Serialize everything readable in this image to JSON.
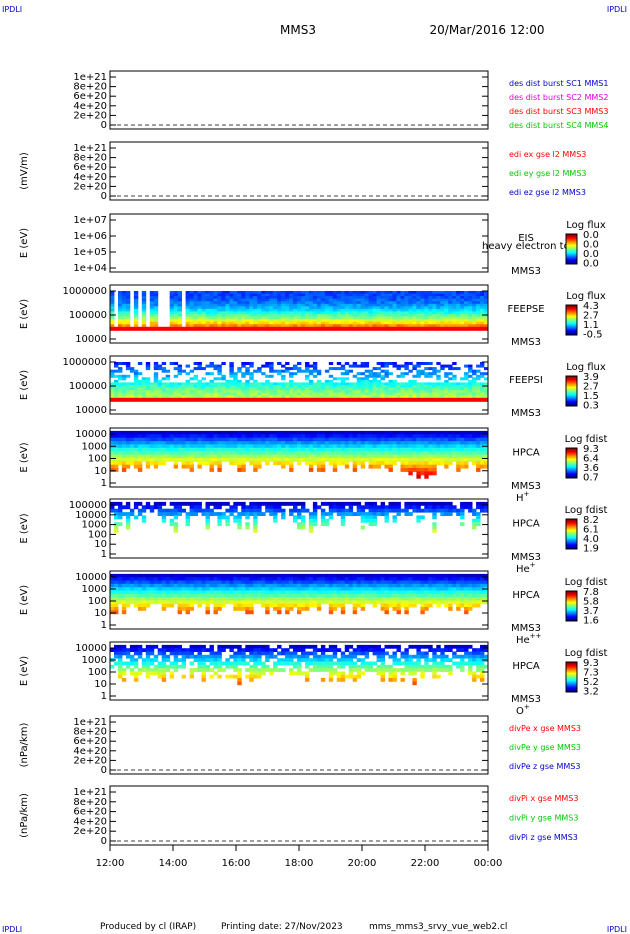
{
  "header": {
    "corner_tl": "IPDLI",
    "corner_tr": "IPDLI",
    "corner_bl": "IPDLI",
    "corner_br": "IPDLI",
    "spacecraft": "MMS3",
    "date": "20/Mar/2016 12:00"
  },
  "footer": {
    "producer": "Produced by cl (IRAP)",
    "printing_date": "Printing date: 27/Nov/2023",
    "script": "mms_mms3_srvy_vue_web2.cl"
  },
  "colors": {
    "red": "#ff0000",
    "green": "#00c800",
    "blue": "#0000cc",
    "magenta": "#e000e0"
  },
  "chart_data": [
    {
      "type": "line",
      "id": "des",
      "ylabel": "",
      "yticks": [
        "0",
        "2e+20",
        "4e+20",
        "6e+20",
        "8e+20",
        "1e+21"
      ],
      "legend": [
        {
          "name": "des dist burst SC1 MMS1",
          "color": "#0000cc"
        },
        {
          "name": "des dist burst SC2 MMS2",
          "color": "#e000e0"
        },
        {
          "name": "des dist burst SC3 MMS3",
          "color": "#ff0000"
        },
        {
          "name": "des dist burst SC4 MMS4",
          "color": "#00c800"
        }
      ]
    },
    {
      "type": "line",
      "id": "edi",
      "ylabel": "(mV/m)",
      "yticks": [
        "0",
        "2e+20",
        "4e+20",
        "6e+20",
        "8e+20",
        "1e+21"
      ],
      "legend": [
        {
          "name": "edi ex gse l2 MMS3",
          "color": "#ff0000"
        },
        {
          "name": "edi ey gse l2 MMS3",
          "color": "#00c800"
        },
        {
          "name": "edi ez gse l2 MMS3",
          "color": "#0000cc"
        }
      ]
    },
    {
      "type": "heatmap",
      "id": "eis",
      "ylabel": "E (eV)",
      "yticks": [
        "1e+04",
        "1e+05",
        "1e+06",
        "1e+07"
      ],
      "side_labels": [
        "EIS",
        "MMS3"
      ],
      "overlay": "heavy electron to",
      "cbar_title": "Log flux",
      "cbar_ticks": [
        "0.0",
        "0.0",
        "0.0",
        "0.0"
      ]
    },
    {
      "type": "heatmap",
      "id": "feepse",
      "ylabel": "E (eV)",
      "yticks": [
        "10000",
        "100000",
        "1000000"
      ],
      "side_labels": [
        "FEEPSE",
        "MMS3"
      ],
      "cbar_title": "Log flux",
      "cbar_ticks": [
        "4.3",
        "2.7",
        "1.1",
        "-0.5"
      ]
    },
    {
      "type": "heatmap",
      "id": "feepsi",
      "ylabel": "E (eV)",
      "yticks": [
        "10000",
        "100000",
        "1000000"
      ],
      "side_labels": [
        "FEEPSI",
        "MMS3"
      ],
      "cbar_title": "Log flux",
      "cbar_ticks": [
        "3.9",
        "2.7",
        "1.5",
        "0.3"
      ]
    },
    {
      "type": "heatmap",
      "id": "hpca_h",
      "ylabel": "E (eV)",
      "yticks": [
        "1",
        "10",
        "100",
        "1000",
        "10000"
      ],
      "side_labels": [
        "HPCA",
        "MMS3"
      ],
      "species": "H",
      "charge": "+",
      "cbar_title": "Log fdist",
      "cbar_ticks": [
        "9.3",
        "6.4",
        "3.6",
        "0.7"
      ]
    },
    {
      "type": "heatmap",
      "id": "hpca_he",
      "ylabel": "E (eV)",
      "yticks": [
        "1",
        "10",
        "100",
        "1000",
        "10000",
        "100000"
      ],
      "side_labels": [
        "HPCA",
        "MMS3"
      ],
      "species": "He",
      "charge": "+",
      "cbar_title": "Log fdist",
      "cbar_ticks": [
        "8.2",
        "6.1",
        "4.0",
        "1.9"
      ]
    },
    {
      "type": "heatmap",
      "id": "hpca_he2",
      "ylabel": "E (eV)",
      "yticks": [
        "1",
        "10",
        "100",
        "1000",
        "10000"
      ],
      "side_labels": [
        "HPCA",
        "MMS3"
      ],
      "species": "He",
      "charge": "++",
      "cbar_title": "Log fdist",
      "cbar_ticks": [
        "7.8",
        "5.8",
        "3.7",
        "1.6"
      ]
    },
    {
      "type": "heatmap",
      "id": "hpca_o",
      "ylabel": "E (eV)",
      "yticks": [
        "1",
        "10",
        "100",
        "1000",
        "10000"
      ],
      "side_labels": [
        "HPCA",
        "MMS3"
      ],
      "species": "O",
      "charge": "+",
      "cbar_title": "Log fdist",
      "cbar_ticks": [
        "9.3",
        "7.3",
        "5.2",
        "3.2"
      ]
    },
    {
      "type": "line",
      "id": "divpe",
      "ylabel": "(nPa/km)",
      "yticks": [
        "0",
        "2e+20",
        "4e+20",
        "6e+20",
        "8e+20",
        "1e+21"
      ],
      "legend": [
        {
          "name": "divPe x gse MMS3",
          "color": "#ff0000"
        },
        {
          "name": "divPe y gse MMS3",
          "color": "#00c800"
        },
        {
          "name": "divPe z gse MMS3",
          "color": "#0000cc"
        }
      ]
    },
    {
      "type": "line",
      "id": "divpi",
      "ylabel": "(nPa/km)",
      "yticks": [
        "0",
        "2e+20",
        "4e+20",
        "6e+20",
        "8e+20",
        "1e+21"
      ],
      "legend": [
        {
          "name": "divPi x gse MMS3",
          "color": "#ff0000"
        },
        {
          "name": "divPi y gse MMS3",
          "color": "#00c800"
        },
        {
          "name": "divPi z gse MMS3",
          "color": "#0000cc"
        }
      ]
    }
  ],
  "time_axis": {
    "ticks": [
      "12:00",
      "14:00",
      "16:00",
      "18:00",
      "20:00",
      "22:00",
      "00:00"
    ]
  }
}
